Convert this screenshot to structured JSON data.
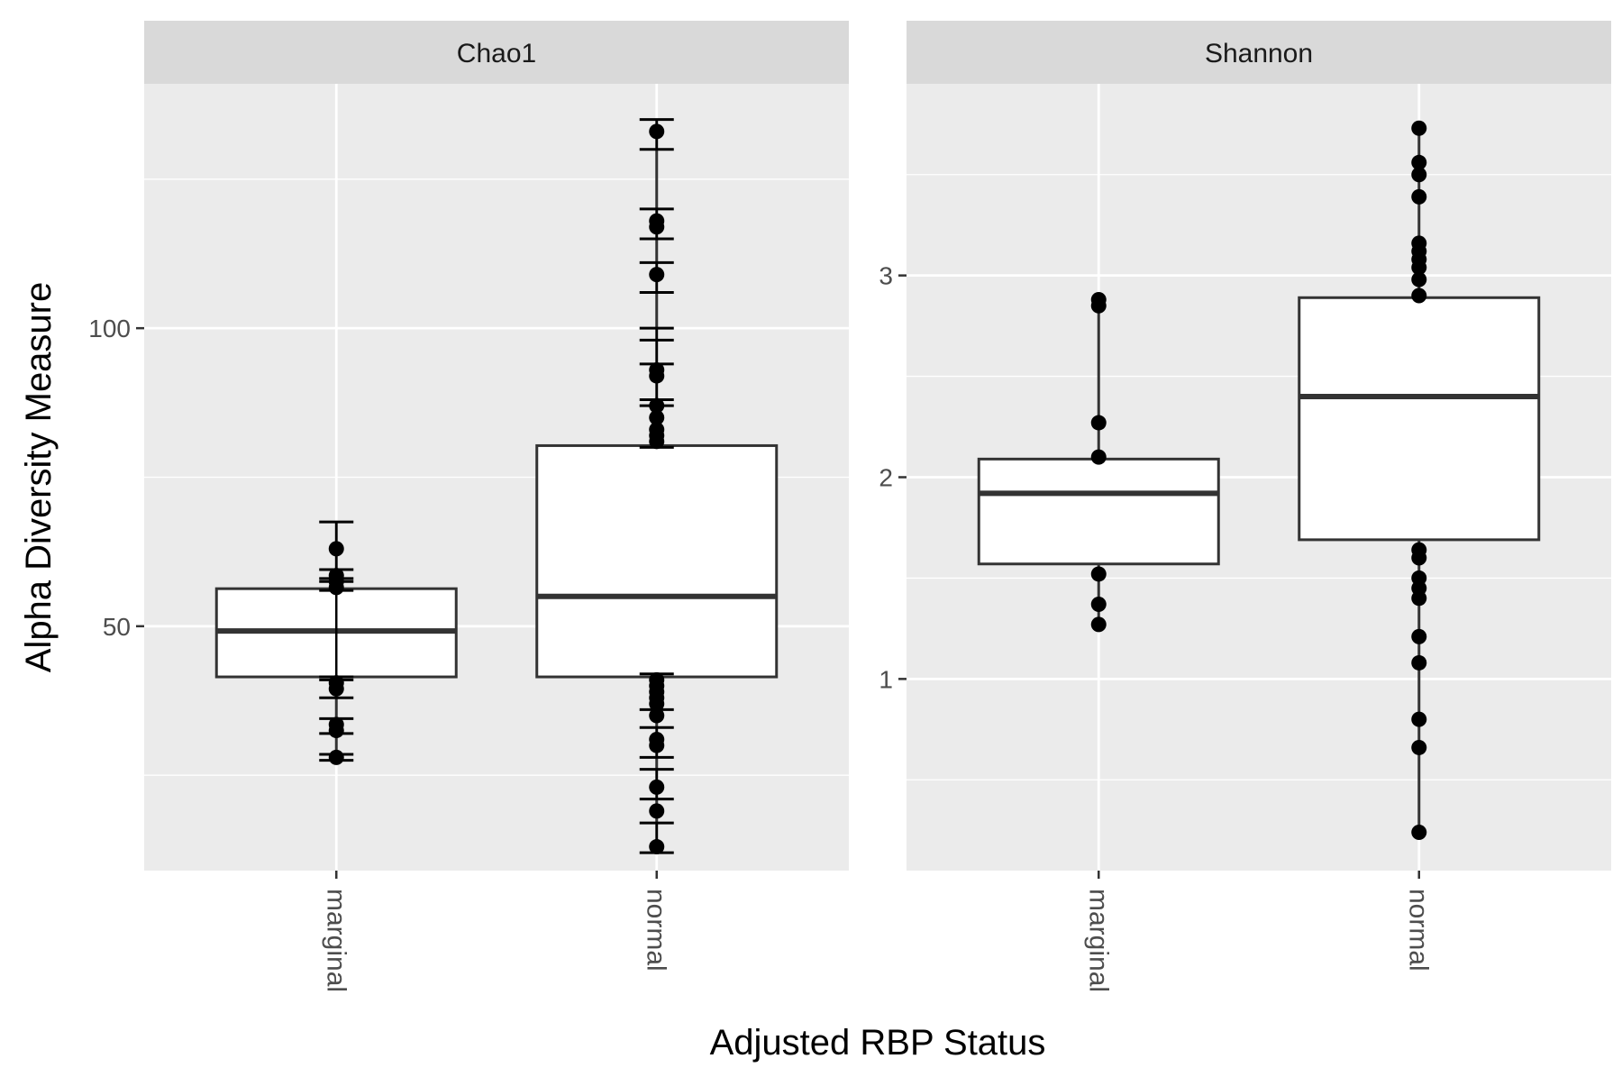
{
  "chart_data": {
    "type": "box",
    "xlabel": "Adjusted RBP Status",
    "ylabel": "Alpha Diversity Measure",
    "categories": [
      "marginal",
      "normal"
    ],
    "grid": true,
    "legend": "none",
    "colors": {
      "panel_bg": "#ebebeb",
      "strip_bg": "#d9d9d9",
      "grid": "#ffffff",
      "box_fill": "#ffffff",
      "box_stroke": "#333333",
      "points": "#000000",
      "axis_text": "#4d4d4d",
      "title_text": "#000000"
    },
    "facets": [
      {
        "name": "Chao1",
        "ylim": [
          9,
          141
        ],
        "yticks": [
          50,
          100
        ],
        "ytick_labels": [
          "50",
          "100"
        ],
        "minor_gridlines": [
          25,
          75,
          125
        ],
        "groups": [
          {
            "category": "marginal",
            "box": {
              "q1": 41.5,
              "median": 49.2,
              "q3": 56.3
            },
            "points": [
              63.0,
              58.5,
              57.5,
              56.5,
              40.5,
              39.5,
              33.5,
              32.5,
              28.0
            ],
            "error_bars": [
              {
                "low": 41.0,
                "high": 67.5
              },
              {
                "low": 57.5,
                "high": 59.5
              },
              {
                "low": 56.0,
                "high": 58.0
              },
              {
                "low": 38.0,
                "high": 41.5
              },
              {
                "low": 32.0,
                "high": 34.5
              },
              {
                "low": 27.5,
                "high": 28.5
              }
            ]
          },
          {
            "category": "normal",
            "box": {
              "q1": 41.5,
              "median": 55.0,
              "q3": 80.3
            },
            "points": [
              133,
              118,
              117,
              109,
              93,
              92,
              87,
              85,
              83,
              82,
              81,
              41,
              40,
              39,
              38,
              37,
              35,
              31,
              30,
              23,
              19,
              13
            ],
            "error_bars": [
              {
                "low": 130,
                "high": 135
              },
              {
                "low": 115,
                "high": 120
              },
              {
                "low": 106,
                "high": 111
              },
              {
                "low": 94,
                "high": 100
              },
              {
                "low": 88,
                "high": 98
              },
              {
                "low": 80,
                "high": 87
              },
              {
                "low": 36,
                "high": 42
              },
              {
                "low": 28,
                "high": 33
              },
              {
                "low": 21,
                "high": 26
              },
              {
                "low": 12,
                "high": 17
              }
            ]
          }
        ]
      },
      {
        "name": "Shannon",
        "ylim": [
          0.05,
          3.95
        ],
        "yticks": [
          1,
          2,
          3
        ],
        "ytick_labels": [
          "1",
          "2",
          "3"
        ],
        "minor_gridlines": [
          0.5,
          1.5,
          2.5,
          3.5
        ],
        "groups": [
          {
            "category": "marginal",
            "box": {
              "q1": 1.57,
              "median": 1.92,
              "q3": 2.09
            },
            "whiskers": [
              1.27,
              2.88
            ],
            "points": [
              2.88,
              2.85,
              2.27,
              2.1,
              1.52,
              1.37,
              1.27
            ]
          },
          {
            "category": "normal",
            "box": {
              "q1": 1.69,
              "median": 2.4,
              "q3": 2.89
            },
            "whiskers": [
              0.24,
              3.73
            ],
            "points": [
              3.73,
              3.56,
              3.5,
              3.39,
              3.16,
              3.12,
              3.08,
              3.04,
              2.98,
              2.9,
              1.64,
              1.6,
              1.5,
              1.45,
              1.4,
              1.21,
              1.08,
              0.8,
              0.66,
              0.24
            ]
          }
        ]
      }
    ]
  }
}
